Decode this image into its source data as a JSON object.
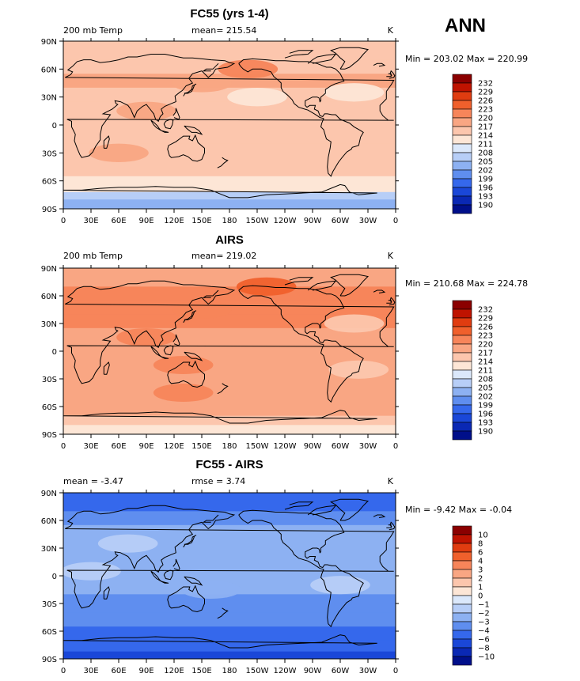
{
  "season": "ANN",
  "chart_data": [
    {
      "type": "heatmap",
      "title": "FC55 (yrs 1-4)",
      "left_label": "200 mb Temp",
      "center_label": "mean= 215.54",
      "units": "K",
      "min_max": "Min = 203.02 Max = 220.99",
      "mean": 215.54,
      "min": 203.02,
      "max": 220.99,
      "x_ticks": [
        "0",
        "30E",
        "60E",
        "90E",
        "120E",
        "150E",
        "180",
        "150W",
        "120W",
        "90W",
        "60W",
        "30W",
        "0"
      ],
      "y_ticks": [
        "90N",
        "60N",
        "30N",
        "0",
        "30S",
        "60S",
        "90S"
      ],
      "levels": [
        "232",
        "229",
        "226",
        "223",
        "220",
        "217",
        "214",
        "211",
        "208",
        "205",
        "202",
        "199",
        "196",
        "193",
        "190"
      ],
      "zonal_profile": [
        {
          "lat": 90,
          "band": 214
        },
        {
          "lat": 70,
          "band": 214
        },
        {
          "lat": 55,
          "band": 217
        },
        {
          "lat": 40,
          "band": 214
        },
        {
          "lat": 25,
          "band": 214
        },
        {
          "lat": 10,
          "band": 214
        },
        {
          "lat": 0,
          "band": 214
        },
        {
          "lat": -20,
          "band": 214
        },
        {
          "lat": -40,
          "band": 214
        },
        {
          "lat": -55,
          "band": 211
        },
        {
          "lat": -65,
          "band": 211
        },
        {
          "lat": -72,
          "band": 205
        },
        {
          "lat": -80,
          "band": 202
        },
        {
          "lat": -90,
          "band": 202
        }
      ],
      "features": [
        {
          "lon": 150,
          "lat": 45,
          "band": 217
        },
        {
          "lon": 200,
          "lat": 60,
          "band": 220
        },
        {
          "lon": 90,
          "lat": 15,
          "band": 217
        },
        {
          "lon": 315,
          "lat": 35,
          "band": 211
        },
        {
          "lon": 210,
          "lat": 30,
          "band": 211
        },
        {
          "lon": 60,
          "lat": -30,
          "band": 217
        }
      ]
    },
    {
      "type": "heatmap",
      "title": "AIRS",
      "left_label": "200 mb Temp",
      "center_label": "mean= 219.02",
      "units": "K",
      "min_max": "Min = 210.68 Max = 224.78",
      "mean": 219.02,
      "min": 210.68,
      "max": 224.78,
      "x_ticks": [
        "0",
        "30E",
        "60E",
        "90E",
        "120E",
        "150E",
        "180",
        "150W",
        "120W",
        "90W",
        "60W",
        "30W",
        "0"
      ],
      "y_ticks": [
        "90N",
        "60N",
        "30N",
        "0",
        "30S",
        "60S",
        "90S"
      ],
      "levels": [
        "232",
        "229",
        "226",
        "223",
        "220",
        "217",
        "214",
        "211",
        "208",
        "205",
        "202",
        "199",
        "196",
        "193",
        "190"
      ],
      "zonal_profile": [
        {
          "lat": 90,
          "band": 217
        },
        {
          "lat": 70,
          "band": 220
        },
        {
          "lat": 55,
          "band": 220
        },
        {
          "lat": 40,
          "band": 220
        },
        {
          "lat": 25,
          "band": 217
        },
        {
          "lat": 10,
          "band": 217
        },
        {
          "lat": 0,
          "band": 217
        },
        {
          "lat": -20,
          "band": 217
        },
        {
          "lat": -45,
          "band": 217
        },
        {
          "lat": -62,
          "band": 217
        },
        {
          "lat": -70,
          "band": 214
        },
        {
          "lat": -80,
          "band": 211
        },
        {
          "lat": -90,
          "band": 211
        }
      ],
      "features": [
        {
          "lon": 220,
          "lat": 70,
          "band": 223
        },
        {
          "lon": 150,
          "lat": 45,
          "band": 220
        },
        {
          "lon": 90,
          "lat": 15,
          "band": 220
        },
        {
          "lon": 130,
          "lat": -15,
          "band": 220
        },
        {
          "lon": 130,
          "lat": -45,
          "band": 220
        },
        {
          "lon": 315,
          "lat": 30,
          "band": 214
        },
        {
          "lon": 320,
          "lat": -20,
          "band": 214
        }
      ]
    },
    {
      "type": "heatmap",
      "title": "FC55 - AIRS",
      "left_label": "mean =   -3.47",
      "center_label": "rmse =    3.74",
      "units": "K",
      "min_max": "Min =   -9.42 Max =   -0.04",
      "mean": -3.47,
      "rmse": 3.74,
      "min": -9.42,
      "max": -0.04,
      "x_ticks": [
        "0",
        "30E",
        "60E",
        "90E",
        "120E",
        "150E",
        "180",
        "150W",
        "120W",
        "90W",
        "60W",
        "30W",
        "0"
      ],
      "y_ticks": [
        "90N",
        "60N",
        "30N",
        "0",
        "30S",
        "60S",
        "90S"
      ],
      "levels": [
        "10",
        "8",
        "6",
        "4",
        "3",
        "2",
        "1",
        "0",
        "−1",
        "−2",
        "−3",
        "−4",
        "−6",
        "−8",
        "−10"
      ],
      "zonal_profile": [
        {
          "lat": 90,
          "band": -6
        },
        {
          "lat": 70,
          "band": -4
        },
        {
          "lat": 55,
          "band": -3
        },
        {
          "lat": 40,
          "band": -3
        },
        {
          "lat": 25,
          "band": -3
        },
        {
          "lat": 10,
          "band": -3
        },
        {
          "lat": 0,
          "band": -3
        },
        {
          "lat": -20,
          "band": -4
        },
        {
          "lat": -40,
          "band": -4
        },
        {
          "lat": -55,
          "band": -6
        },
        {
          "lat": -70,
          "band": -6
        },
        {
          "lat": -82,
          "band": -8
        },
        {
          "lat": -90,
          "band": -6
        }
      ],
      "features": [
        {
          "lon": 30,
          "lat": 5,
          "band": -2
        },
        {
          "lon": 70,
          "lat": 35,
          "band": -2
        },
        {
          "lon": 300,
          "lat": -10,
          "band": -2
        },
        {
          "lon": 160,
          "lat": -15,
          "band": -3
        }
      ]
    }
  ],
  "warm_colors": [
    "#8b0000",
    "#bf1300",
    "#e03c10",
    "#f0602c",
    "#f7855a",
    "#f9a683",
    "#fcc6ad",
    "#fde6d6"
  ],
  "cool_colors": [
    "#dbe8fb",
    "#b7cef7",
    "#8db1f2",
    "#5f8eef",
    "#3568ec",
    "#1a47d8",
    "#0a28b4",
    "#000f8a"
  ],
  "coast_color": "#000000"
}
